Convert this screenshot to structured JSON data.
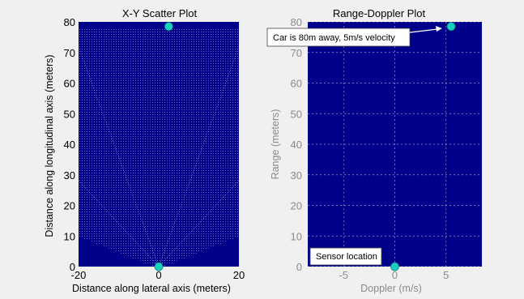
{
  "chart_data": [
    {
      "type": "scatter",
      "title": "X-Y Scatter Plot",
      "xlabel": "Distance along lateral axis (meters)",
      "ylabel": "Distance along longitudinal axis (meters)",
      "xlim": [
        -20,
        20
      ],
      "ylim": [
        0,
        80
      ],
      "xticks": [
        "-20",
        "0",
        "20"
      ],
      "yticks": [
        "0",
        "10",
        "20",
        "30",
        "40",
        "50",
        "60",
        "70",
        "80"
      ],
      "grid": false,
      "background_color": "#00008b",
      "coverage_color": "#c8c8e6",
      "detections": [
        {
          "x": 2.5,
          "y": 78.5
        },
        {
          "x": 0,
          "y": 0
        }
      ],
      "marker_color": "#19d0c0"
    },
    {
      "type": "scatter",
      "title": "Range-Doppler Plot",
      "xlabel": "Doppler (m/s)",
      "ylabel": "Range (meters)",
      "xlim": [
        -8.5,
        8.5
      ],
      "ylim": [
        0,
        80
      ],
      "xticks": [
        "-5",
        "0",
        "5"
      ],
      "yticks": [
        "0",
        "10",
        "20",
        "30",
        "40",
        "50",
        "60",
        "70",
        "80"
      ],
      "grid": true,
      "background_color": "#00008b",
      "detections": [
        {
          "x": 5.5,
          "y": 78.5
        },
        {
          "x": 0,
          "y": 0
        }
      ],
      "marker_color": "#19d0c0",
      "annotations": [
        {
          "text": "Car is 80m away, 5m/s velocity"
        },
        {
          "text": "Sensor location"
        }
      ]
    }
  ]
}
